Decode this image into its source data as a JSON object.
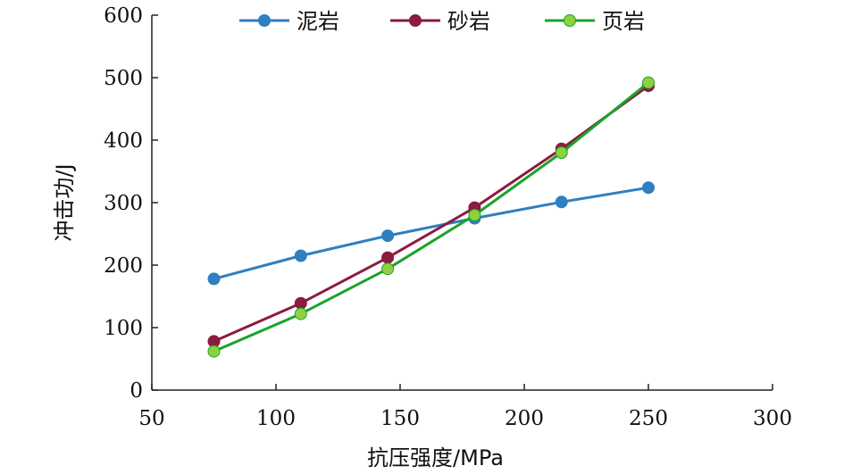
{
  "chart_data": {
    "type": "line",
    "xlabel": "抗压强度/MPa",
    "ylabel": "冲击功/J",
    "xlim": [
      50,
      300
    ],
    "ylim": [
      0,
      600
    ],
    "xticks": [
      50,
      100,
      150,
      200,
      250,
      300
    ],
    "yticks": [
      0,
      100,
      200,
      300,
      400,
      500,
      600
    ],
    "grid": false,
    "legend_position": "top",
    "series": [
      {
        "name": "泥岩",
        "color": "#2f7fc1",
        "x": [
          75,
          110,
          145,
          180,
          215,
          250
        ],
        "y": [
          178,
          215,
          247,
          275,
          301,
          324
        ]
      },
      {
        "name": "砂岩",
        "color": "#8b1c3f",
        "x": [
          75,
          110,
          145,
          180,
          215,
          250
        ],
        "y": [
          78,
          139,
          212,
          292,
          386,
          487
        ]
      },
      {
        "name": "页岩",
        "color": "#1aa32a",
        "marker_color": "#8ed13f",
        "x": [
          75,
          110,
          145,
          180,
          215,
          250
        ],
        "y": [
          62,
          122,
          194,
          280,
          380,
          492
        ]
      }
    ]
  }
}
